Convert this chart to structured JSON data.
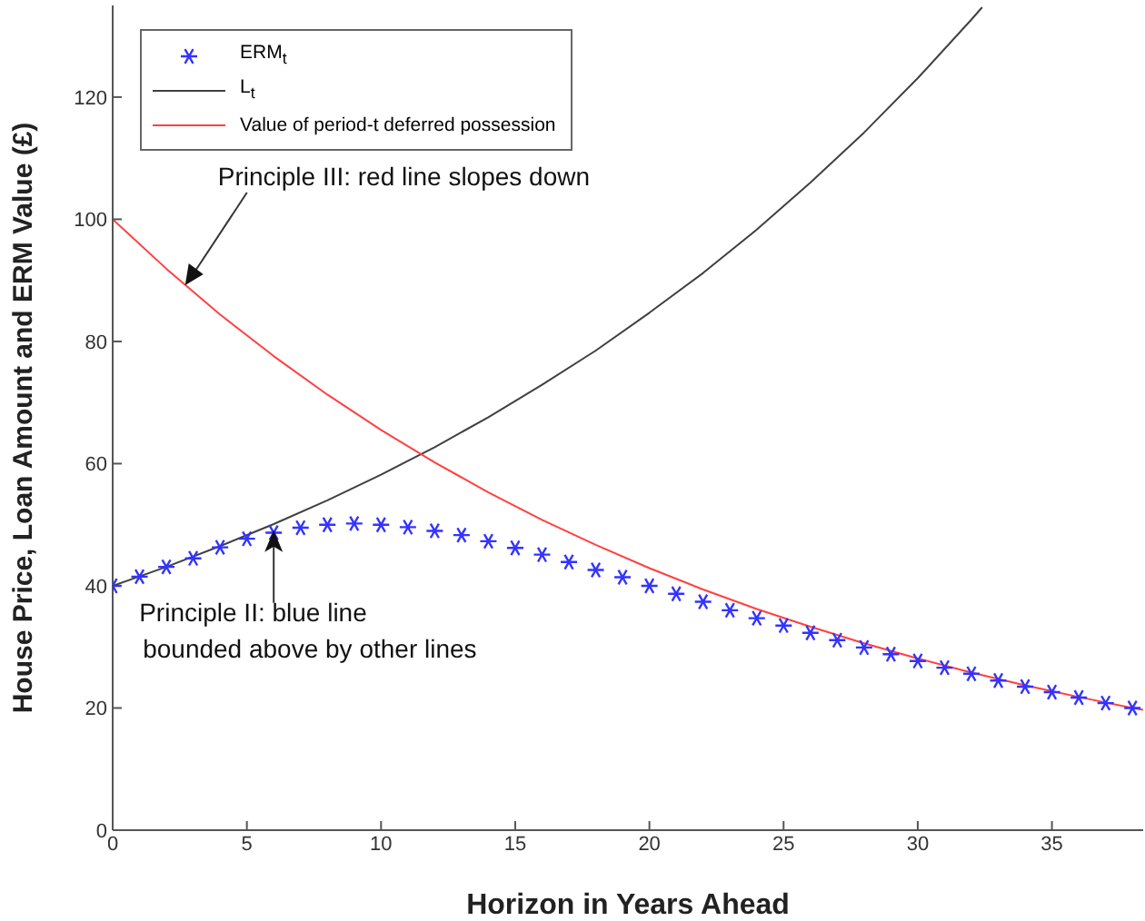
{
  "chart_data": {
    "type": "line",
    "xlabel": "Horizon in Years Ahead",
    "ylabel": "House Price, Loan Amount and ERM Value (£)",
    "xlim": [
      0,
      38.4
    ],
    "ylim": [
      0,
      135
    ],
    "xticks": [
      0,
      5,
      10,
      15,
      20,
      25,
      30,
      35
    ],
    "yticks": [
      0,
      20,
      40,
      60,
      80,
      100,
      120
    ],
    "grid": false,
    "legend": "top left",
    "series": [
      {
        "name": "ERM$_{t}$",
        "type": "scatter",
        "marker": "cross",
        "color": "#3333ff",
        "x": [
          0,
          1,
          2,
          3,
          4,
          5,
          6,
          7,
          8,
          9,
          10,
          11,
          12,
          13,
          14,
          15,
          16,
          17,
          18,
          19,
          20,
          21,
          22,
          23,
          24,
          25,
          26,
          27,
          28,
          29,
          30,
          31,
          32,
          33,
          34,
          35,
          36,
          37,
          38
        ],
        "values": [
          40.0,
          41.5,
          43.1,
          44.5,
          46.3,
          47.7,
          48.7,
          49.5,
          50.0,
          50.2,
          50.0,
          49.6,
          49.0,
          48.3,
          47.3,
          46.2,
          45.1,
          43.9,
          42.6,
          41.4,
          40.0,
          38.7,
          37.4,
          36.0,
          34.7,
          33.5,
          32.3,
          31.1,
          29.9,
          28.8,
          27.7,
          26.6,
          25.6,
          24.5,
          23.5,
          22.6,
          21.7,
          20.8,
          20.0
        ]
      },
      {
        "name": "L$_{t}$",
        "type": "line",
        "marker": "none",
        "color": "#404040",
        "x": [
          0,
          2,
          4,
          6,
          8,
          10,
          12,
          14,
          16,
          18,
          20,
          22,
          24,
          26,
          28,
          30,
          32,
          32.4
        ],
        "values": [
          40.0,
          43.1,
          46.5,
          50.1,
          54.0,
          58.2,
          62.7,
          67.6,
          72.9,
          78.5,
          84.7,
          91.2,
          98.3,
          106.0,
          114.2,
          123.1,
          132.7,
          134.7
        ]
      },
      {
        "name": "Value of period-t deferred possession",
        "type": "line",
        "marker": "none",
        "color": "#ff4040",
        "x": [
          0,
          2,
          4,
          6,
          8,
          10,
          12,
          14,
          16,
          18,
          20,
          22,
          24,
          26,
          28,
          30,
          32,
          34,
          36,
          38,
          38.4
        ],
        "values": [
          100,
          91.9,
          84.4,
          77.6,
          71.3,
          65.5,
          60.2,
          55.3,
          50.8,
          46.7,
          42.9,
          39.4,
          36.2,
          33.3,
          30.6,
          28.1,
          25.8,
          23.7,
          21.8,
          20.0,
          19.7
        ]
      }
    ],
    "annotations": [
      {
        "text": "Principle III: red line slopes down",
        "x": 2.7,
        "y": 89.2
      },
      {
        "text": "Principle II: blue line\nbounded above by other lines",
        "x": 6,
        "y": 49.1
      }
    ]
  }
}
